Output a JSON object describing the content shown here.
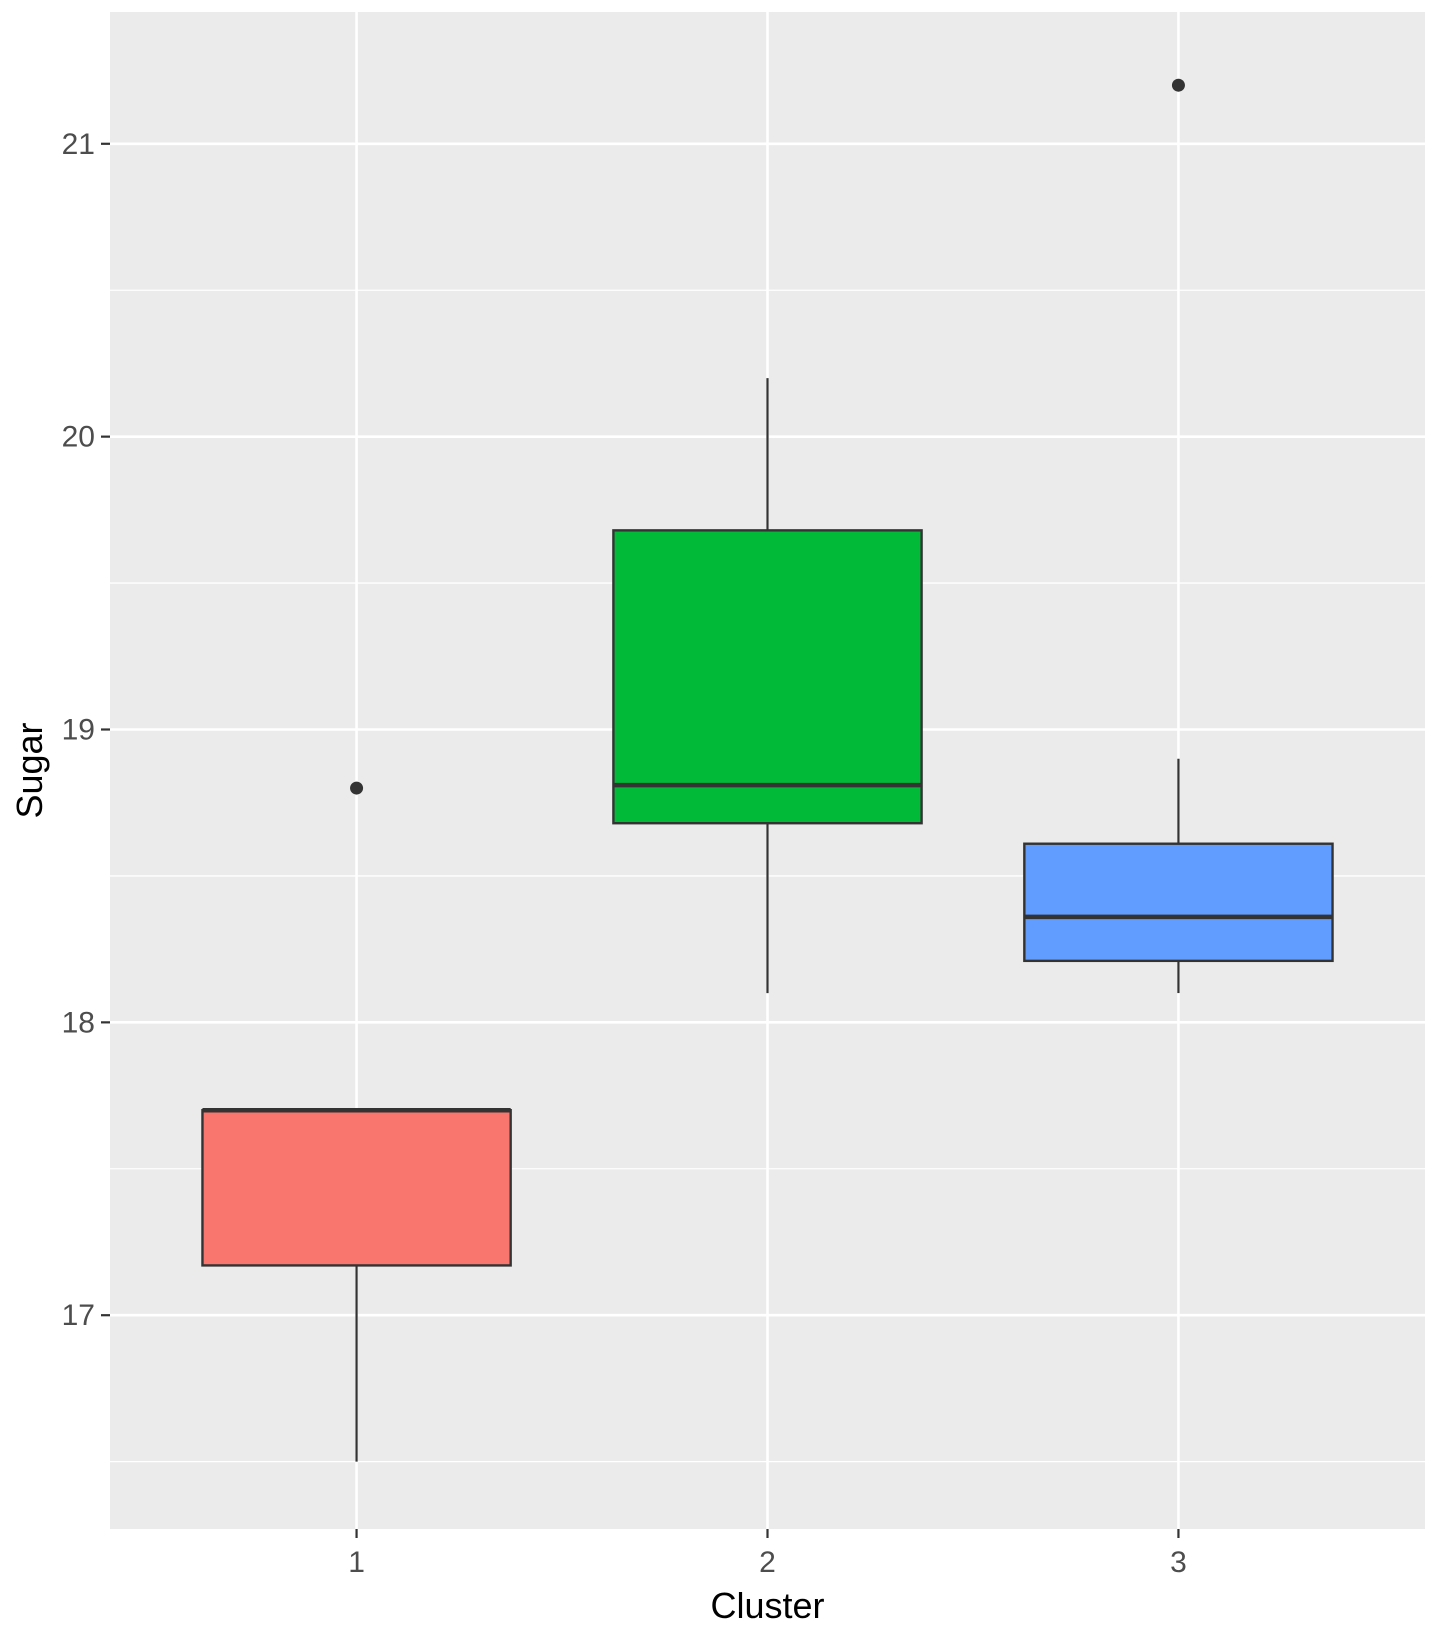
{
  "chart_data": {
    "type": "boxplot",
    "title": "",
    "xlabel": "Cluster",
    "ylabel": "Sugar",
    "ylim": [
      16.27,
      21.45
    ],
    "y_ticks": [
      "17",
      "18",
      "19",
      "20",
      "21"
    ],
    "y_tick_values": [
      17,
      18,
      19,
      20,
      21
    ],
    "y_minor_values": [
      16.5,
      17.5,
      18.5,
      19.5,
      20.5
    ],
    "categories": [
      "1",
      "2",
      "3"
    ],
    "legend": "none",
    "grid": true,
    "colors": {
      "panel": "#EBEBEB",
      "grid": "#FFFFFF",
      "outline": "#333333",
      "box_1": "#F8766D",
      "box_2": "#00BA38",
      "box_3": "#619CFF"
    },
    "boxes": [
      {
        "category": "1",
        "whisker_low": 16.5,
        "q1": 17.17,
        "median": 17.7,
        "q3": 17.7,
        "whisker_high": 17.7,
        "outliers": [
          18.8
        ]
      },
      {
        "category": "2",
        "whisker_low": 18.1,
        "q1": 18.68,
        "median": 18.81,
        "q3": 19.68,
        "whisker_high": 20.2,
        "outliers": []
      },
      {
        "category": "3",
        "whisker_low": 18.1,
        "q1": 18.21,
        "median": 18.36,
        "q3": 18.61,
        "whisker_high": 18.9,
        "outliers": [
          21.2
        ]
      }
    ]
  }
}
